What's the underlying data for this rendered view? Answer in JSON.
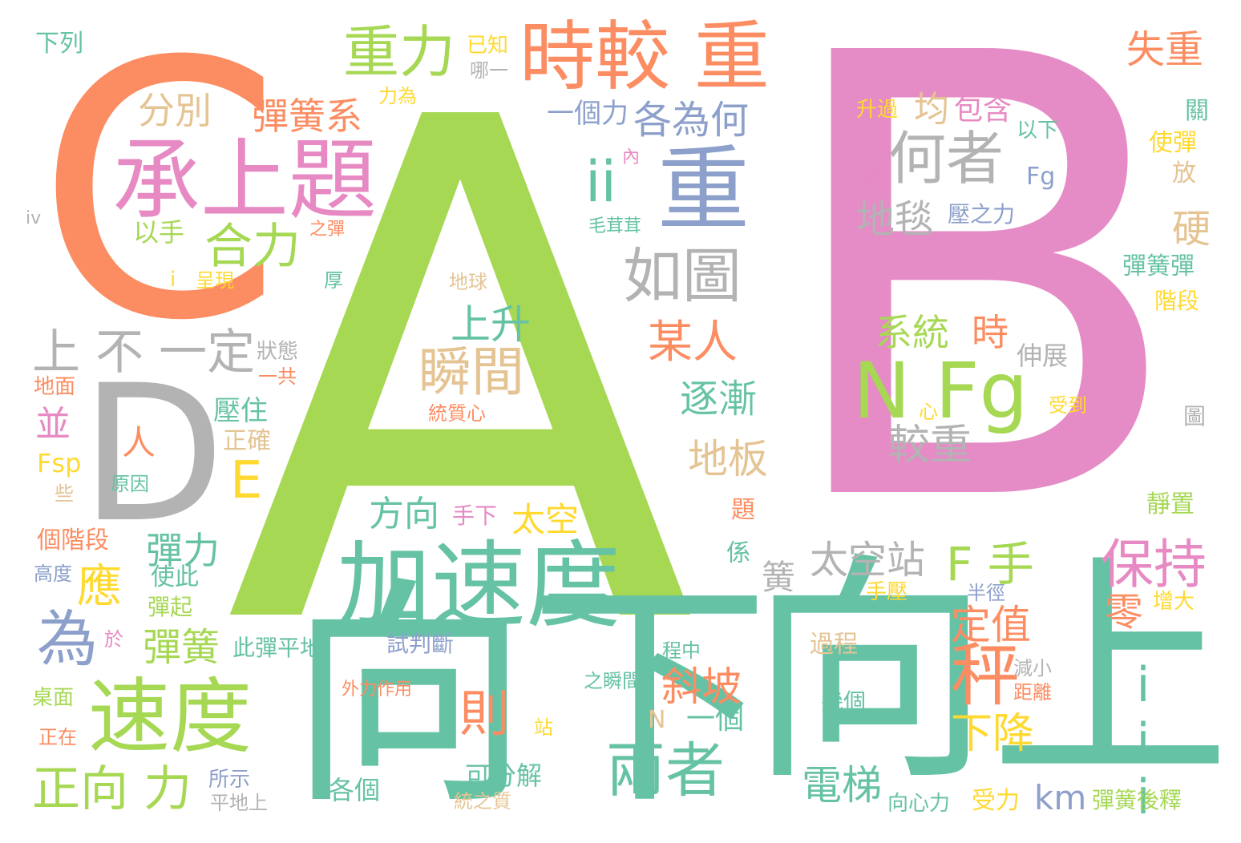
{
  "words": [
    {
      "text": "B",
      "color": "#e58bc6"
    },
    {
      "text": "A",
      "color": "#a6d854"
    },
    {
      "text": "C",
      "color": "#fc8d62"
    },
    {
      "text": "D",
      "color": "#b3b3b3"
    },
    {
      "text": "向上",
      "color": "#66c2a5"
    },
    {
      "text": "向下",
      "color": "#66c2a5"
    },
    {
      "text": "加速度",
      "color": "#66c2a5"
    },
    {
      "text": "速度",
      "color": "#a6d854"
    },
    {
      "text": "承上題",
      "color": "#e78ac3"
    },
    {
      "text": "重",
      "color": "#8da0cb"
    },
    {
      "text": "時較 重",
      "color": "#fc8d62"
    },
    {
      "text": "重力",
      "color": "#a6d854"
    },
    {
      "text": "N Fg",
      "color": "#a6d854"
    },
    {
      "text": "何者",
      "color": "#b3b3b3"
    },
    {
      "text": "如圖",
      "color": "#b3b3b3"
    },
    {
      "text": "ii",
      "color": "#66c2a5"
    },
    {
      "text": "iii",
      "color": "#66c2a5"
    },
    {
      "text": "秤",
      "color": "#fc8d62"
    },
    {
      "text": "正向 力",
      "color": "#a6d854"
    },
    {
      "text": "兩者",
      "color": "#66c2a5"
    },
    {
      "text": "保持",
      "color": "#e78ac3"
    },
    {
      "text": "瞬間",
      "color": "#e5c494"
    },
    {
      "text": "為",
      "color": "#8da0cb"
    },
    {
      "text": "合力",
      "color": "#a6d854"
    },
    {
      "text": "各為何",
      "color": "#8da0cb"
    },
    {
      "text": "地毯",
      "color": "#b3b3b3"
    },
    {
      "text": "較重",
      "color": "#b3b3b3"
    },
    {
      "text": "上 不 一定",
      "color": "#b3b3b3"
    },
    {
      "text": "某人",
      "color": "#fc8d62"
    },
    {
      "text": "F 手",
      "color": "#a6d854"
    },
    {
      "text": "則",
      "color": "#fc8d62"
    },
    {
      "text": "定值",
      "color": "#fc8d62"
    },
    {
      "text": "下降",
      "color": "#ffd92f"
    },
    {
      "text": "電梯",
      "color": "#66c2a5"
    },
    {
      "text": "斜坡",
      "color": "#fc8d62"
    },
    {
      "text": "失重",
      "color": "#fc8d62"
    },
    {
      "text": "逐漸",
      "color": "#66c2a5"
    },
    {
      "text": "地板",
      "color": "#e5c494"
    },
    {
      "text": "太空站",
      "color": "#b3b3b3"
    },
    {
      "text": "彈簧系",
      "color": "#fc8d62"
    },
    {
      "text": "系統",
      "color": "#a6d854"
    },
    {
      "text": "時",
      "color": "#fc8d62"
    },
    {
      "text": "分別",
      "color": "#e5c494"
    },
    {
      "text": "上升",
      "color": "#66c2a5"
    },
    {
      "text": "E",
      "color": "#ffd92f"
    },
    {
      "text": "彈力",
      "color": "#66c2a5"
    },
    {
      "text": "彈簧",
      "color": "#a6d854"
    },
    {
      "text": "應",
      "color": "#ffd92f"
    },
    {
      "text": "太空",
      "color": "#ffd92f"
    },
    {
      "text": "方向",
      "color": "#66c2a5"
    },
    {
      "text": "零",
      "color": "#fc8d62"
    },
    {
      "text": "硬",
      "color": "#e5c494"
    },
    {
      "text": "均",
      "color": "#e5c494"
    },
    {
      "text": "包含",
      "color": "#e78ac3"
    },
    {
      "text": "一個力",
      "color": "#8da0cb"
    },
    {
      "text": "km",
      "color": "#8da0cb"
    },
    {
      "text": "人",
      "color": "#fc8d62"
    },
    {
      "text": "並",
      "color": "#e78ac3"
    },
    {
      "text": "簧",
      "color": "#b3b3b3"
    },
    {
      "text": "一個",
      "color": "#66c2a5"
    },
    {
      "text": "以手",
      "color": "#a6d854"
    },
    {
      "text": "壓住",
      "color": "#66c2a5"
    },
    {
      "text": "正確",
      "color": "#e5c494"
    },
    {
      "text": "伸展",
      "color": "#b3b3b3"
    },
    {
      "text": "可分解",
      "color": "#66c2a5"
    },
    {
      "text": "各個",
      "color": "#66c2a5"
    },
    {
      "text": "受力",
      "color": "#ffd92f"
    },
    {
      "text": "彈簧後釋",
      "color": "#a6d854"
    },
    {
      "text": "此彈平地",
      "color": "#66c2a5"
    },
    {
      "text": "試判斷",
      "color": "#8da0cb"
    },
    {
      "text": "過程",
      "color": "#e5c494"
    },
    {
      "text": "幾個",
      "color": "#66c2a5"
    },
    {
      "text": "向心力",
      "color": "#66c2a5"
    },
    {
      "text": "彈簧彈",
      "color": "#66c2a5"
    },
    {
      "text": "階段",
      "color": "#ffd92f"
    },
    {
      "text": "使彈",
      "color": "#ffd92f"
    },
    {
      "text": "放",
      "color": "#e5c494"
    },
    {
      "text": "關",
      "color": "#66c2a5"
    },
    {
      "text": "下列",
      "color": "#66c2a5"
    },
    {
      "text": "已知",
      "color": "#ffd92f"
    },
    {
      "text": "哪一",
      "color": "#b3b3b3"
    },
    {
      "text": "力為",
      "color": "#ffd92f"
    },
    {
      "text": "升過",
      "color": "#ffd92f"
    },
    {
      "text": "以下",
      "color": "#66c2a5"
    },
    {
      "text": "Fg",
      "color": "#8da0cb"
    },
    {
      "text": "壓之力",
      "color": "#8da0cb"
    },
    {
      "text": "內",
      "color": "#e78ac3"
    },
    {
      "text": "較",
      "color": "#e78ac3"
    },
    {
      "text": "毛茸茸",
      "color": "#66c2a5"
    },
    {
      "text": "之彈",
      "color": "#fc8d62"
    },
    {
      "text": "iv",
      "color": "#b3b3b3"
    },
    {
      "text": "i",
      "color": "#ffd92f"
    },
    {
      "text": "呈現",
      "color": "#ffd92f"
    },
    {
      "text": "厚",
      "color": "#66c2a5"
    },
    {
      "text": "地球",
      "color": "#e5c494"
    },
    {
      "text": "狀態",
      "color": "#b3b3b3"
    },
    {
      "text": "一共",
      "color": "#fc8d62"
    },
    {
      "text": "地面",
      "color": "#fc8d62"
    },
    {
      "text": "統質心",
      "color": "#fc8d62"
    },
    {
      "text": "心",
      "color": "#ffd92f"
    },
    {
      "text": "受到",
      "color": "#ffd92f"
    },
    {
      "text": "圖",
      "color": "#b3b3b3"
    },
    {
      "text": "Fsp",
      "color": "#ffd92f"
    },
    {
      "text": "些",
      "color": "#e5c494"
    },
    {
      "text": "原因",
      "color": "#66c2a5"
    },
    {
      "text": "手下",
      "color": "#e78ac3"
    },
    {
      "text": "靜置",
      "color": "#a6d854"
    },
    {
      "text": "題",
      "color": "#fc8d62"
    },
    {
      "text": "個階段",
      "color": "#fc8d62"
    },
    {
      "text": "使此",
      "color": "#66c2a5"
    },
    {
      "text": "係",
      "color": "#66c2a5"
    },
    {
      "text": "高度",
      "color": "#8da0cb"
    },
    {
      "text": "彈起",
      "color": "#a6d854"
    },
    {
      "text": "手壓",
      "color": "#ffd92f"
    },
    {
      "text": "半徑",
      "color": "#8da0cb"
    },
    {
      "text": "增大",
      "color": "#ffd92f"
    },
    {
      "text": "於",
      "color": "#e78ac3"
    },
    {
      "text": "程中",
      "color": "#66c2a5"
    },
    {
      "text": "減小",
      "color": "#b3b3b3"
    },
    {
      "text": "之瞬間",
      "color": "#66c2a5"
    },
    {
      "text": "外力作用",
      "color": "#fc8d62"
    },
    {
      "text": "距離",
      "color": "#fc8d62"
    },
    {
      "text": "桌面",
      "color": "#a6d854"
    },
    {
      "text": "正在",
      "color": "#fc8d62"
    },
    {
      "text": "站",
      "color": "#ffd92f"
    },
    {
      "text": "N",
      "color": "#e5c494"
    },
    {
      "text": "所示",
      "color": "#8da0cb"
    },
    {
      "text": "平地上",
      "color": "#b3b3b3"
    },
    {
      "text": "統之質",
      "color": "#e5c494"
    }
  ]
}
